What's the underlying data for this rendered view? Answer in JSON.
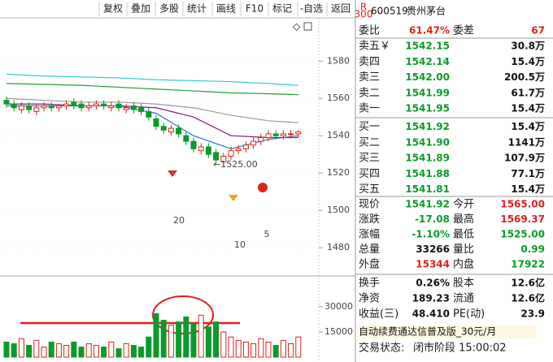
{
  "toolbar": [
    "复权",
    "叠加",
    "多股",
    "统计",
    "画线",
    "F10",
    "标记",
    "-自选",
    "返回"
  ],
  "chart": {
    "price_ylim": [
      1467,
      1601
    ],
    "price_yticks": [
      1580,
      1560,
      1540,
      1520,
      1500,
      1480
    ],
    "open": [
      1559,
      1557,
      1554,
      1556,
      1553,
      1555,
      1556,
      1555,
      1556,
      1558,
      1557,
      1555,
      1556,
      1557,
      1555,
      1557,
      1554,
      1556,
      1555,
      1553,
      1549,
      1545,
      1542,
      1544,
      1540,
      1537,
      1532,
      1534,
      1531,
      1526,
      1529,
      1532,
      1533,
      1535,
      1537,
      1539,
      1541,
      1540,
      1541,
      1541
    ],
    "close": [
      1557,
      1555,
      1556,
      1554,
      1555,
      1556,
      1555,
      1556,
      1557,
      1556,
      1555,
      1556,
      1557,
      1556,
      1556,
      1555,
      1555,
      1554,
      1553,
      1550,
      1545,
      1543,
      1544,
      1541,
      1537,
      1533,
      1534,
      1530,
      1527,
      1529,
      1532,
      1533,
      1535,
      1537,
      1539,
      1541,
      1540,
      1541,
      1541,
      1542
    ],
    "high": [
      1561,
      1559,
      1558,
      1558,
      1557,
      1558,
      1558,
      1557,
      1559,
      1560,
      1559,
      1558,
      1559,
      1559,
      1558,
      1559,
      1557,
      1558,
      1557,
      1555,
      1551,
      1547,
      1546,
      1546,
      1542,
      1539,
      1536,
      1536,
      1533,
      1531,
      1534,
      1535,
      1537,
      1539,
      1541,
      1543,
      1543,
      1543,
      1543,
      1543
    ],
    "low": [
      1555,
      1553,
      1552,
      1552,
      1551,
      1553,
      1553,
      1553,
      1554,
      1554,
      1553,
      1553,
      1554,
      1554,
      1553,
      1553,
      1552,
      1552,
      1551,
      1548,
      1543,
      1541,
      1540,
      1539,
      1535,
      1531,
      1530,
      1528,
      1525,
      1524,
      1527,
      1530,
      1531,
      1533,
      1535,
      1537,
      1538,
      1538,
      1539,
      1539
    ],
    "ma_x": [
      0,
      5,
      10,
      15,
      20,
      25,
      30,
      35,
      39
    ],
    "ma_lines": [
      {
        "color": "#36c9d6",
        "values": [
          1573,
          1572,
          1571.5,
          1571,
          1570,
          1569.5,
          1569,
          1568,
          1567
        ]
      },
      {
        "color": "#2a9a3a",
        "values": [
          1568,
          1567.5,
          1567,
          1566,
          1565,
          1564,
          1563,
          1562.5,
          1562
        ]
      },
      {
        "color": "#9a9a9a",
        "values": [
          1560,
          1559,
          1558,
          1558,
          1557,
          1555,
          1551,
          1548,
          1547
        ]
      },
      {
        "color": "#7a1f7a",
        "values": [
          1557,
          1557,
          1556,
          1556,
          1555,
          1550,
          1540,
          1539,
          1539
        ]
      },
      {
        "color": "#2f6fd6",
        "values": [
          1556,
          1556,
          1556,
          1556,
          1552,
          1540,
          1533,
          1538,
          1540
        ]
      }
    ],
    "low_label": "←1525.00",
    "labels": [
      "20",
      "10",
      "5"
    ],
    "volume_ylim": [
      0,
      46000
    ],
    "volume_yticks": [
      30000,
      15000
    ],
    "volume": [
      9000,
      8000,
      11000,
      7000,
      10000,
      6000,
      9000,
      8000,
      7000,
      9000,
      6000,
      8000,
      7000,
      6000,
      9000,
      5000,
      8000,
      7000,
      6000,
      12000,
      26000,
      22000,
      19000,
      21000,
      24000,
      20000,
      25000,
      18000,
      21000,
      15000,
      12000,
      10000,
      9000,
      8000,
      11000,
      9000,
      7000,
      10000,
      8000,
      12000
    ]
  },
  "quote": {
    "badge_top": "R",
    "badge_bottom": "300",
    "code": "600519",
    "name": "贵州茅台",
    "ratio": [
      "委比",
      "61.47%",
      "委差",
      "67"
    ],
    "book": [
      [
        "卖五￥",
        "1542.15",
        "30.8万"
      ],
      [
        "卖四",
        "1542.14",
        "15.4万"
      ],
      [
        "卖三",
        "1542.00",
        "200.5万"
      ],
      [
        "卖二",
        "1541.99",
        "61.7万"
      ],
      [
        "卖一",
        "1541.95",
        "15.4万"
      ],
      [
        "买一",
        "1541.92",
        "15.4万"
      ],
      [
        "买二",
        "1541.90",
        "1141万"
      ],
      [
        "买三",
        "1541.89",
        "107.9万"
      ],
      [
        "买四",
        "1541.88",
        "77.1万"
      ],
      [
        "买五",
        "1541.81",
        "15.4万"
      ]
    ],
    "stats": [
      [
        "现价",
        "1541.92",
        "今开",
        "1565.00"
      ],
      [
        "涨跌",
        "-17.08",
        "最高",
        "1569.37"
      ],
      [
        "涨幅",
        "-1.10%",
        "最低",
        "1525.00"
      ],
      [
        "总量",
        "33266",
        "量比",
        "0.99"
      ],
      [
        "外盘",
        "15344",
        "内盘",
        "17922"
      ]
    ],
    "fundamentals": [
      [
        "换手",
        "0.26%",
        "股本",
        "12.6亿"
      ],
      [
        "净资",
        "189.23",
        "流通",
        "12.6亿"
      ],
      [
        "收益(三)",
        "48.410",
        "PE(动)",
        "23.9"
      ]
    ],
    "banner": "自动续费通达信普及版_30元/月",
    "status_label": "交易状态:",
    "status_value": "闭市阶段 15:00:02"
  }
}
